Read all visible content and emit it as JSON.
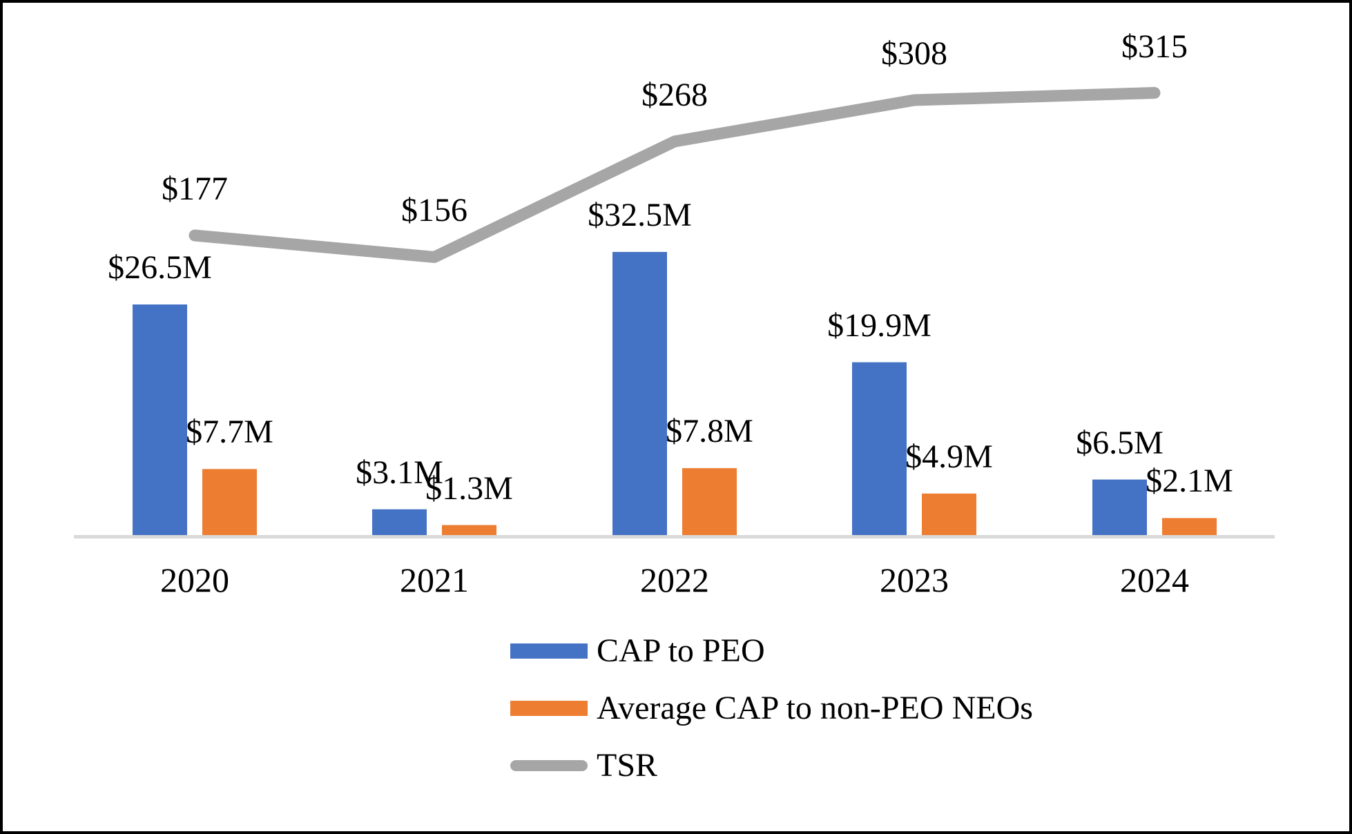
{
  "chart_data": {
    "type": "combo",
    "title": "",
    "categories": [
      "2020",
      "2021",
      "2022",
      "2023",
      "2024"
    ],
    "series": [
      {
        "name": "CAP to PEO",
        "type": "bar",
        "color": "#4472C4",
        "values": [
          26.5,
          3.1,
          32.5,
          19.9,
          6.5
        ],
        "labels": [
          "$26.5M",
          "$3.1M",
          "$32.5M",
          "$19.9M",
          "$6.5M"
        ]
      },
      {
        "name": "Average CAP to non-PEO NEOs",
        "type": "bar",
        "color": "#ED7D31",
        "values": [
          7.7,
          1.3,
          7.8,
          4.9,
          2.1
        ],
        "labels": [
          "$7.7M",
          "$1.3M",
          "$7.8M",
          "$4.9M",
          "$2.1M"
        ]
      },
      {
        "name": "TSR",
        "type": "line",
        "color": "#A6A6A6",
        "values": [
          177,
          156,
          268,
          308,
          315
        ],
        "labels": [
          "$177",
          "$156",
          "$268",
          "$308",
          "$315"
        ]
      }
    ],
    "legend_position": "bottom-left",
    "grid": false,
    "axis": {
      "x_labels": [
        "2020",
        "2021",
        "2022",
        "2023",
        "2024"
      ],
      "baseline_color": "#D9D9D9",
      "y_axis_visible": false
    }
  }
}
